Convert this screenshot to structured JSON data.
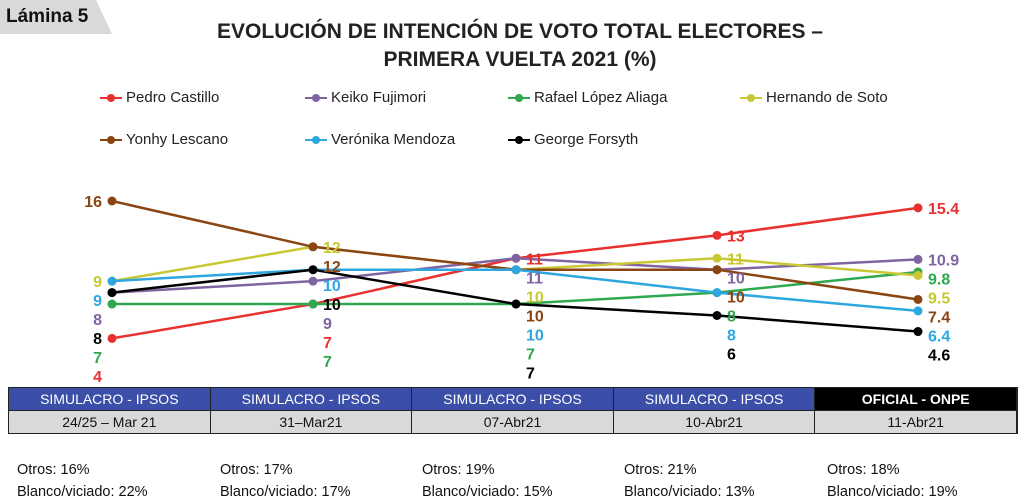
{
  "badge": "Lámina 5",
  "chart_data": {
    "type": "line",
    "title": "EVOLUCIÓN DE INTENCIÓN DE VOTO TOTAL ELECTORES – PRIMERA VUELTA 2021 (%)",
    "title_lines": [
      "EVOLUCIÓN DE INTENCIÓN DE VOTO TOTAL ELECTORES –",
      "PRIMERA VUELTA 2021 (%)"
    ],
    "categories": [
      "24/25 – Mar 21",
      "31–Mar21",
      "07-Abr21",
      "10-Abr21",
      "11-Abr21"
    ],
    "ylim": [
      4,
      16
    ],
    "legend_placement": "top",
    "series": [
      {
        "name": "Pedro Castillo",
        "color": "#e8312f",
        "values": [
          4,
          7,
          11,
          13,
          15.4
        ]
      },
      {
        "name": "Keiko Fujimori",
        "color": "#8064a2",
        "values": [
          8,
          9,
          11,
          10,
          10.9
        ]
      },
      {
        "name": "Rafael López Aliaga",
        "color": "#2fa84f",
        "values": [
          7,
          7,
          7,
          8,
          9.8
        ]
      },
      {
        "name": "Hernando de Soto",
        "color": "#c8c832",
        "values": [
          9,
          12,
          10,
          11,
          9.5
        ]
      },
      {
        "name": "Yonhy Lescano",
        "color": "#8b4513",
        "values": [
          16,
          12,
          10,
          10,
          7.4
        ]
      },
      {
        "name": "Verónika Mendoza",
        "color": "#2ea7e0",
        "values": [
          9,
          10,
          10,
          8,
          6.4
        ]
      },
      {
        "name": "George Forsyth",
        "color": "#000000",
        "values": [
          8,
          10,
          7,
          6,
          4.6
        ]
      }
    ]
  },
  "table": {
    "headers": [
      "SIMULACRO - IPSOS",
      "SIMULACRO - IPSOS",
      "SIMULACRO - IPSOS",
      "SIMULACRO - IPSOS",
      "OFICIAL - ONPE"
    ],
    "dates": [
      "24/25 – Mar 21",
      "31–Mar21",
      "07-Abr21",
      "10-Abr21",
      "11-Abr21"
    ]
  },
  "footer": [
    {
      "otros": "Otros: 16%",
      "blanco": "Blanco/viciado: 22%"
    },
    {
      "otros": "Otros: 17%",
      "blanco": "Blanco/viciado: 17%"
    },
    {
      "otros": "Otros: 19%",
      "blanco": "Blanco/viciado: 15%"
    },
    {
      "otros": "Otros: 21%",
      "blanco": "Blanco/viciado: 13%"
    },
    {
      "otros": "Otros: 18%",
      "blanco": "Blanco/viciado: 19%"
    }
  ]
}
